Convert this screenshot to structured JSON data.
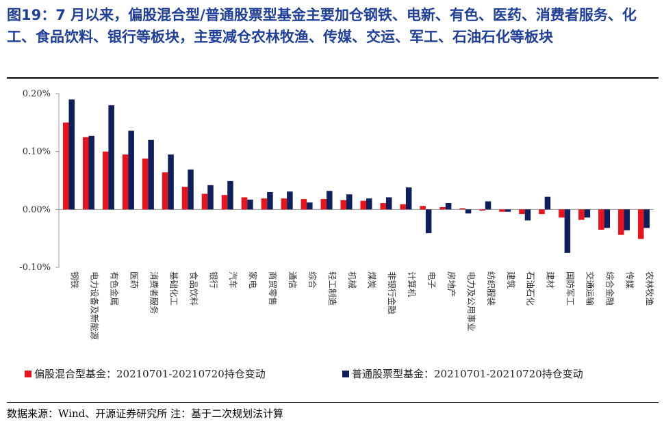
{
  "title": "图19：7 月以来，偏股混合型/普通股票型基金主要加仓钢铁、电新、有色、医药、消费者服务、化工、食品饮料、银行等板块，主要减仓农林牧渔、传媒、交运、军工、石油石化等板块",
  "source": "数据来源：Wind、开源证券研究所 注：基于二次规划法计算",
  "colors": {
    "series1": "#e8141b",
    "series2": "#0e1f5b",
    "axis": "#999999",
    "title": "#1f3f9a"
  },
  "chart_data": {
    "type": "bar",
    "y_tick_labels": [
      "0.20%",
      "0.10%",
      "0.00%",
      "-0.10%"
    ],
    "ylim": [
      -0.1,
      0.2
    ],
    "yticks": [
      0.2,
      0.1,
      0.0,
      -0.1
    ],
    "legend_position": "bottom-left",
    "categories": [
      "钢铁",
      "电力设备及新能源",
      "有色金属",
      "医药",
      "消费者服务",
      "基础化工",
      "食品饮料",
      "银行",
      "汽车",
      "家电",
      "商贸零售",
      "通信",
      "综合",
      "轻工制造",
      "机械",
      "煤炭",
      "非银行金融",
      "计算机",
      "电子",
      "房地产",
      "电力及公用事业",
      "纺织服装",
      "建筑",
      "石油石化",
      "建材",
      "国防军工",
      "交通运输",
      "综合金融",
      "传媒",
      "农林牧渔"
    ],
    "series": [
      {
        "name": "偏股混合型基金：20210701-20210720持仓变动",
        "values": [
          0.15,
          0.125,
          0.1,
          0.095,
          0.088,
          0.064,
          0.039,
          0.027,
          0.025,
          0.021,
          0.019,
          0.019,
          0.018,
          0.018,
          0.016,
          0.015,
          0.011,
          0.009,
          0.006,
          0.004,
          0.002,
          -0.002,
          -0.004,
          -0.008,
          -0.008,
          -0.014,
          -0.018,
          -0.035,
          -0.044,
          -0.051
        ]
      },
      {
        "name": "普通股票型基金：20210701-20210720持仓变动",
        "values": [
          0.19,
          0.127,
          0.18,
          0.136,
          0.12,
          0.095,
          0.069,
          0.042,
          0.049,
          0.017,
          0.03,
          0.031,
          0.012,
          0.032,
          0.026,
          0.019,
          0.021,
          0.038,
          -0.041,
          0.011,
          -0.007,
          0.014,
          -0.004,
          -0.019,
          0.022,
          -0.075,
          -0.014,
          -0.032,
          -0.036,
          -0.032
        ]
      }
    ]
  }
}
